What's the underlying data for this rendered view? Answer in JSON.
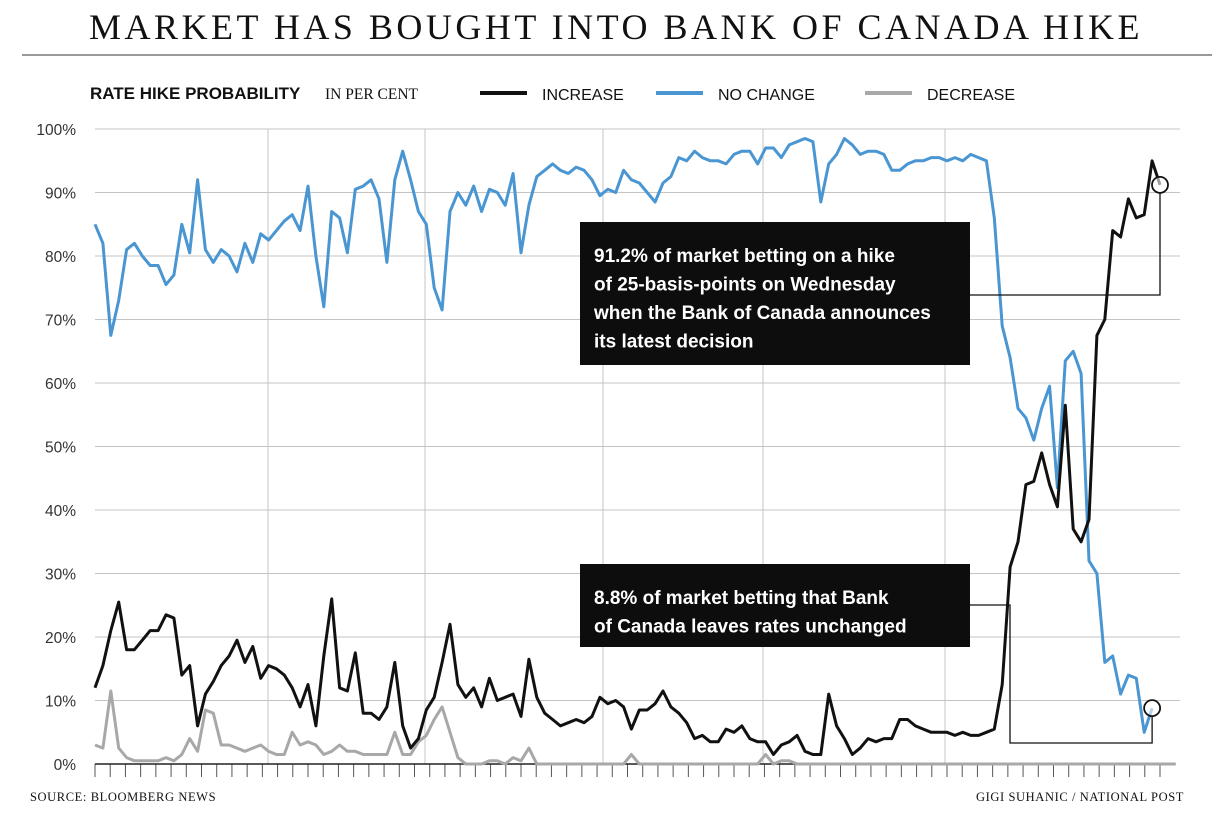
{
  "headline": "MARKET HAS BOUGHT INTO BANK OF CANADA HIKE",
  "footer": {
    "source": "SOURCE: BLOOMBERG NEWS",
    "credit": "GIGI SUHANIC / NATIONAL POST"
  },
  "chart_data": {
    "type": "line",
    "title": "RATE HIKE PROBABILITY",
    "title_unit": "IN PER CENT",
    "ylim": [
      0,
      100
    ],
    "y_ticks": [
      "0%",
      "10%",
      "20%",
      "30%",
      "40%",
      "50%",
      "60%",
      "70%",
      "80%",
      "90%",
      "100%"
    ],
    "grid": "horizontal and vertical lines",
    "legend_position": "top",
    "series": [
      {
        "name": "INCREASE",
        "color": "#111111",
        "values": [
          12,
          15.5,
          21,
          25.5,
          18,
          18,
          19.5,
          21,
          21,
          23.5,
          23,
          14,
          15.5,
          6,
          11,
          13,
          15.5,
          17,
          19.5,
          16,
          18.5,
          13.5,
          15.5,
          15,
          14,
          12,
          9,
          12.5,
          6,
          17,
          26,
          12,
          11.5,
          17.5,
          8,
          8,
          7,
          9,
          16,
          6,
          2.5,
          4,
          8.5,
          10.5,
          16,
          22,
          12.5,
          10.5,
          12,
          9,
          13.5,
          10,
          10.5,
          11,
          7.5,
          16.5,
          10.5,
          8,
          7,
          6,
          6.5,
          7,
          6.5,
          7.5,
          10.5,
          9.5,
          10,
          9,
          5.5,
          8.5,
          8.5,
          9.5,
          11.5,
          9,
          8,
          6.5,
          4,
          4.5,
          3.5,
          3.5,
          5.5,
          5,
          6,
          4,
          3.5,
          3.5,
          1.5,
          3,
          3.5,
          4.5,
          2,
          1.5,
          1.5,
          11,
          6,
          4,
          1.5,
          2.5,
          4,
          3.5,
          4,
          4,
          7,
          7,
          6,
          5.5,
          5,
          5,
          5,
          4.5,
          5,
          4.5,
          4.5,
          5,
          5.5,
          12.5,
          31,
          35,
          44,
          44.5,
          49,
          44,
          40.5,
          56.5,
          37,
          35,
          38.5,
          67.5,
          70,
          84,
          83,
          89,
          86,
          86.5,
          95,
          91.2
        ]
      },
      {
        "name": "NO CHANGE",
        "color": "#4a96d2",
        "values": [
          85,
          82,
          67.5,
          73,
          81,
          82,
          80,
          78.5,
          78.5,
          75.5,
          77,
          85,
          80.5,
          92,
          81,
          79,
          81,
          80,
          77.5,
          82,
          79,
          83.5,
          82.5,
          84,
          85.5,
          86.5,
          84,
          91,
          80,
          72,
          87,
          86,
          80.5,
          90.5,
          91,
          92,
          89,
          79,
          92,
          96.5,
          92,
          87,
          85,
          75,
          71.5,
          87,
          90,
          88,
          91,
          87,
          90.5,
          90,
          88,
          93,
          80.5,
          88,
          92.5,
          93.5,
          94.5,
          93.5,
          93,
          94,
          93.5,
          92,
          89.5,
          90.5,
          90,
          93.5,
          92,
          91.5,
          90,
          88.5,
          91.5,
          92.5,
          95.5,
          95,
          96.5,
          95.5,
          95,
          95,
          94.5,
          96,
          96.5,
          96.5,
          94.5,
          97,
          97,
          95.5,
          97.5,
          98,
          98.5,
          98,
          88.5,
          94.5,
          96,
          98.5,
          97.5,
          96,
          96.5,
          96.5,
          96,
          93.5,
          93.5,
          94.5,
          95,
          95,
          95.5,
          95.5,
          95,
          95.5,
          95,
          96,
          95.5,
          95,
          86,
          69,
          64,
          56,
          54.5,
          51,
          56,
          59.5,
          43.5,
          63.5,
          65,
          61.5,
          32,
          30,
          16,
          17,
          11,
          14,
          13.5,
          5,
          8.8
        ]
      },
      {
        "name": "DECREASE",
        "color": "#a8a8a8",
        "values": [
          3,
          2.5,
          11.5,
          2.5,
          1,
          0.5,
          0.5,
          0.5,
          0.5,
          1,
          0.5,
          1.5,
          4,
          2,
          8.5,
          8,
          3,
          3,
          2.5,
          2,
          2.5,
          3,
          2,
          1.5,
          1.5,
          5,
          3,
          3.5,
          3,
          1.5,
          2,
          3,
          2,
          2,
          1.5,
          1.5,
          1.5,
          1.5,
          5,
          1.5,
          1.5,
          3.5,
          4.5,
          7,
          9,
          5,
          1,
          0,
          0,
          0,
          0.5,
          0.5,
          0,
          1,
          0.5,
          2.5,
          0,
          0,
          0,
          0,
          0,
          0,
          0,
          0,
          0,
          0,
          0,
          0,
          1.5,
          0,
          0,
          0,
          0,
          0,
          0,
          0,
          0,
          0,
          0,
          0,
          0,
          0,
          0,
          0,
          0,
          1.5,
          0,
          0.5,
          0.5,
          0,
          0,
          0,
          0,
          0,
          0,
          0,
          0,
          0,
          0,
          0,
          0,
          0,
          0,
          0,
          0,
          0,
          0,
          0,
          0,
          0,
          0,
          0,
          0,
          0,
          0,
          0,
          0,
          0,
          0,
          0,
          0,
          0,
          0,
          0,
          0,
          0,
          0,
          0,
          0,
          0,
          0,
          0,
          0,
          0,
          0,
          0,
          0,
          0
        ]
      }
    ],
    "annotations": [
      {
        "text_lines": [
          "91.2% of market betting on a hike",
          "of 25-basis-points on Wednesday",
          "when the Bank of Canada announces",
          "its latest decision"
        ],
        "target_series": "INCREASE",
        "target_value": 91.2
      },
      {
        "text_lines": [
          "8.8% of market betting that Bank",
          "of Canada leaves rates unchanged"
        ],
        "target_series": "NO CHANGE",
        "target_value": 8.8
      }
    ]
  }
}
